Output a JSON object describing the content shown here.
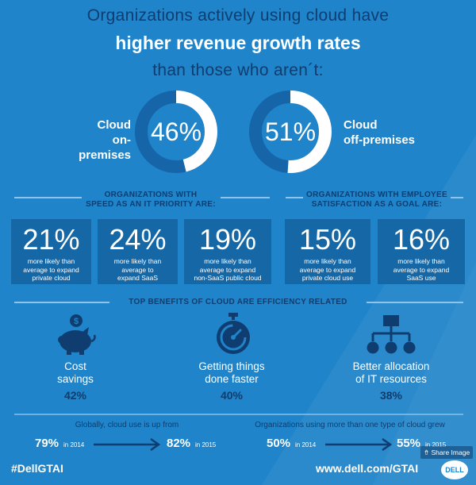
{
  "header": {
    "line1": "Organizations actively using cloud have",
    "line2": "higher revenue growth rates",
    "line3": "than those who aren´t:"
  },
  "donuts": [
    {
      "label_line1": "Cloud",
      "label_line2": "on-premises",
      "value": "46%",
      "fraction": 0.46
    },
    {
      "label_line1": "Cloud",
      "label_line2": "off-premises",
      "value": "51%",
      "fraction": 0.51
    }
  ],
  "speed_section": {
    "title_line1": "ORGANIZATIONS WITH",
    "title_line2": "SPEED AS AN IT PRIORITY ARE:",
    "stats": [
      {
        "value": "21%",
        "lines": [
          "more likely than",
          "average to expand",
          "private cloud"
        ]
      },
      {
        "value": "24%",
        "lines": [
          "more likely than",
          "average to",
          "expand SaaS"
        ]
      },
      {
        "value": "19%",
        "lines": [
          "more likely than",
          "average to expand",
          "non-SaaS public cloud"
        ]
      }
    ]
  },
  "satisfaction_section": {
    "title_line1": "ORGANIZATIONS WITH EMPLOYEE",
    "title_line2": "SATISFACTION AS A GOAL ARE:",
    "stats": [
      {
        "value": "15%",
        "lines": [
          "more likely than",
          "average to expand",
          "private cloud use"
        ]
      },
      {
        "value": "16%",
        "lines": [
          "more likely than",
          "average to expand",
          "SaaS use"
        ]
      }
    ]
  },
  "benefits": {
    "title": "TOP BENEFITS OF CLOUD ARE EFFICIENCY RELATED",
    "items": [
      {
        "icon": "piggy-bank-icon",
        "line1": "Cost",
        "line2": "savings",
        "value": "42%"
      },
      {
        "icon": "stopwatch-icon",
        "line1": "Getting things",
        "line2": "done faster",
        "value": "40%"
      },
      {
        "icon": "org-chart-icon",
        "line1": "Better allocation",
        "line2": "of IT resources",
        "value": "38%"
      }
    ]
  },
  "growth": [
    {
      "title": "Globally, cloud use is up from",
      "from_value": "79%",
      "from_year": "in 2014",
      "to_value": "82%",
      "to_year": "in 2015"
    },
    {
      "title": "Organizations using more than one type of cloud grew",
      "from_value": "50%",
      "from_year": "in 2014",
      "to_value": "55%",
      "to_year": "in 2015"
    }
  ],
  "footer": {
    "hashtag": "#DellGTAI",
    "url": "www.dell.com/GTAI",
    "share": "Share Image",
    "logo_text": "DELL"
  },
  "colors": {
    "background": "#1f84c9",
    "dark_text": "#0f3d70",
    "box": "#1667a6",
    "ring_track": "#1565a8",
    "ring_fill": "#ffffff"
  }
}
